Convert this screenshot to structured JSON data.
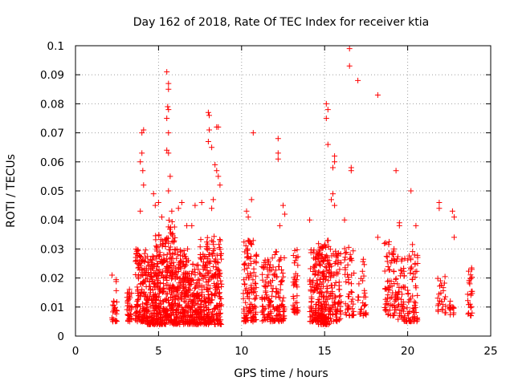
{
  "chart_data": {
    "type": "scatter",
    "title": "Day 162 of 2018, Rate Of TEC Index for receiver ktia",
    "xlabel": "GPS time / hours",
    "ylabel": "ROTI / TECUs",
    "xlim": [
      0,
      25
    ],
    "ylim": [
      0,
      0.1
    ],
    "xticks": [
      "0",
      "5",
      "10",
      "15",
      "20",
      "25"
    ],
    "yticks": [
      "0",
      "0.01",
      "0.02",
      "0.03",
      "0.04",
      "0.05",
      "0.06",
      "0.07",
      "0.08",
      "0.09",
      "0.1"
    ],
    "grid": true,
    "marker": "+",
    "color": "#ff0000",
    "clusters": [
      {
        "x": [
          2.2,
          2.5
        ],
        "y": [
          0.005,
          0.02
        ],
        "n": 25
      },
      {
        "x": [
          3.1,
          3.4
        ],
        "y": [
          0.005,
          0.017
        ],
        "n": 35
      },
      {
        "x": [
          3.6,
          4.3
        ],
        "y": [
          0.005,
          0.03
        ],
        "n": 140
      },
      {
        "x": [
          4.3,
          4.8
        ],
        "y": [
          0.004,
          0.028
        ],
        "n": 110
      },
      {
        "x": [
          4.8,
          5.4
        ],
        "y": [
          0.004,
          0.035
        ],
        "n": 150
      },
      {
        "x": [
          5.4,
          6.0
        ],
        "y": [
          0.004,
          0.04
        ],
        "n": 160
      },
      {
        "x": [
          6.0,
          6.8
        ],
        "y": [
          0.004,
          0.03
        ],
        "n": 170
      },
      {
        "x": [
          6.8,
          7.5
        ],
        "y": [
          0.004,
          0.025
        ],
        "n": 130
      },
      {
        "x": [
          7.5,
          8.2
        ],
        "y": [
          0.004,
          0.034
        ],
        "n": 140
      },
      {
        "x": [
          8.2,
          8.8
        ],
        "y": [
          0.004,
          0.035
        ],
        "n": 110
      },
      {
        "x": [
          10.1,
          10.9
        ],
        "y": [
          0.005,
          0.033
        ],
        "n": 120
      },
      {
        "x": [
          11.2,
          12.0
        ],
        "y": [
          0.005,
          0.027
        ],
        "n": 90
      },
      {
        "x": [
          12.0,
          12.6
        ],
        "y": [
          0.005,
          0.03
        ],
        "n": 70
      },
      {
        "x": [
          13.1,
          13.4
        ],
        "y": [
          0.008,
          0.03
        ],
        "n": 40
      },
      {
        "x": [
          14.1,
          14.6
        ],
        "y": [
          0.005,
          0.03
        ],
        "n": 80
      },
      {
        "x": [
          14.6,
          15.3
        ],
        "y": [
          0.004,
          0.033
        ],
        "n": 170
      },
      {
        "x": [
          15.3,
          16.0
        ],
        "y": [
          0.005,
          0.03
        ],
        "n": 90
      },
      {
        "x": [
          16.2,
          16.8
        ],
        "y": [
          0.007,
          0.032
        ],
        "n": 50
      },
      {
        "x": [
          17.0,
          17.5
        ],
        "y": [
          0.007,
          0.03
        ],
        "n": 30
      },
      {
        "x": [
          18.6,
          19.2
        ],
        "y": [
          0.007,
          0.033
        ],
        "n": 60
      },
      {
        "x": [
          19.2,
          20.0
        ],
        "y": [
          0.005,
          0.028
        ],
        "n": 70
      },
      {
        "x": [
          20.0,
          20.6
        ],
        "y": [
          0.005,
          0.032
        ],
        "n": 60
      },
      {
        "x": [
          21.8,
          22.3
        ],
        "y": [
          0.008,
          0.022
        ],
        "n": 25
      },
      {
        "x": [
          22.5,
          22.8
        ],
        "y": [
          0.007,
          0.013
        ],
        "n": 15
      },
      {
        "x": [
          23.6,
          23.9
        ],
        "y": [
          0.007,
          0.024
        ],
        "n": 25
      }
    ],
    "outliers": [
      [
        2.2,
        0.021
      ],
      [
        3.9,
        0.043
      ],
      [
        3.9,
        0.06
      ],
      [
        4.0,
        0.063
      ],
      [
        4.0,
        0.07
      ],
      [
        4.1,
        0.071
      ],
      [
        4.05,
        0.057
      ],
      [
        4.1,
        0.052
      ],
      [
        4.7,
        0.049
      ],
      [
        4.8,
        0.045
      ],
      [
        5.0,
        0.046
      ],
      [
        5.2,
        0.041
      ],
      [
        5.5,
        0.091
      ],
      [
        5.6,
        0.087
      ],
      [
        5.6,
        0.085
      ],
      [
        5.55,
        0.079
      ],
      [
        5.6,
        0.078
      ],
      [
        5.5,
        0.075
      ],
      [
        5.6,
        0.07
      ],
      [
        5.5,
        0.064
      ],
      [
        5.6,
        0.063
      ],
      [
        5.7,
        0.055
      ],
      [
        5.6,
        0.05
      ],
      [
        5.8,
        0.043
      ],
      [
        6.2,
        0.044
      ],
      [
        6.4,
        0.046
      ],
      [
        6.7,
        0.038
      ],
      [
        7.0,
        0.038
      ],
      [
        7.2,
        0.045
      ],
      [
        7.6,
        0.046
      ],
      [
        8.0,
        0.077
      ],
      [
        8.05,
        0.076
      ],
      [
        8.0,
        0.067
      ],
      [
        8.05,
        0.071
      ],
      [
        8.2,
        0.065
      ],
      [
        8.5,
        0.072
      ],
      [
        8.6,
        0.072
      ],
      [
        8.4,
        0.059
      ],
      [
        8.5,
        0.057
      ],
      [
        8.6,
        0.055
      ],
      [
        8.7,
        0.052
      ],
      [
        8.3,
        0.047
      ],
      [
        8.2,
        0.044
      ],
      [
        10.3,
        0.043
      ],
      [
        10.6,
        0.047
      ],
      [
        10.7,
        0.07
      ],
      [
        10.4,
        0.041
      ],
      [
        12.2,
        0.068
      ],
      [
        12.2,
        0.063
      ],
      [
        12.2,
        0.061
      ],
      [
        12.5,
        0.045
      ],
      [
        12.6,
        0.042
      ],
      [
        12.3,
        0.038
      ],
      [
        14.1,
        0.04
      ],
      [
        15.1,
        0.08
      ],
      [
        15.2,
        0.078
      ],
      [
        15.1,
        0.075
      ],
      [
        15.2,
        0.066
      ],
      [
        15.6,
        0.06
      ],
      [
        15.5,
        0.058
      ],
      [
        15.6,
        0.062
      ],
      [
        15.5,
        0.049
      ],
      [
        15.6,
        0.045
      ],
      [
        15.4,
        0.047
      ],
      [
        16.2,
        0.04
      ],
      [
        16.5,
        0.099
      ],
      [
        16.5,
        0.093
      ],
      [
        17.0,
        0.088
      ],
      [
        16.6,
        0.057
      ],
      [
        16.6,
        0.058
      ],
      [
        18.2,
        0.083
      ],
      [
        18.2,
        0.034
      ],
      [
        19.3,
        0.057
      ],
      [
        19.5,
        0.039
      ],
      [
        19.5,
        0.038
      ],
      [
        20.2,
        0.05
      ],
      [
        20.5,
        0.038
      ],
      [
        21.9,
        0.046
      ],
      [
        21.9,
        0.044
      ],
      [
        22.7,
        0.043
      ],
      [
        22.8,
        0.034
      ],
      [
        22.8,
        0.041
      ],
      [
        20.6,
        0.025
      ]
    ]
  }
}
